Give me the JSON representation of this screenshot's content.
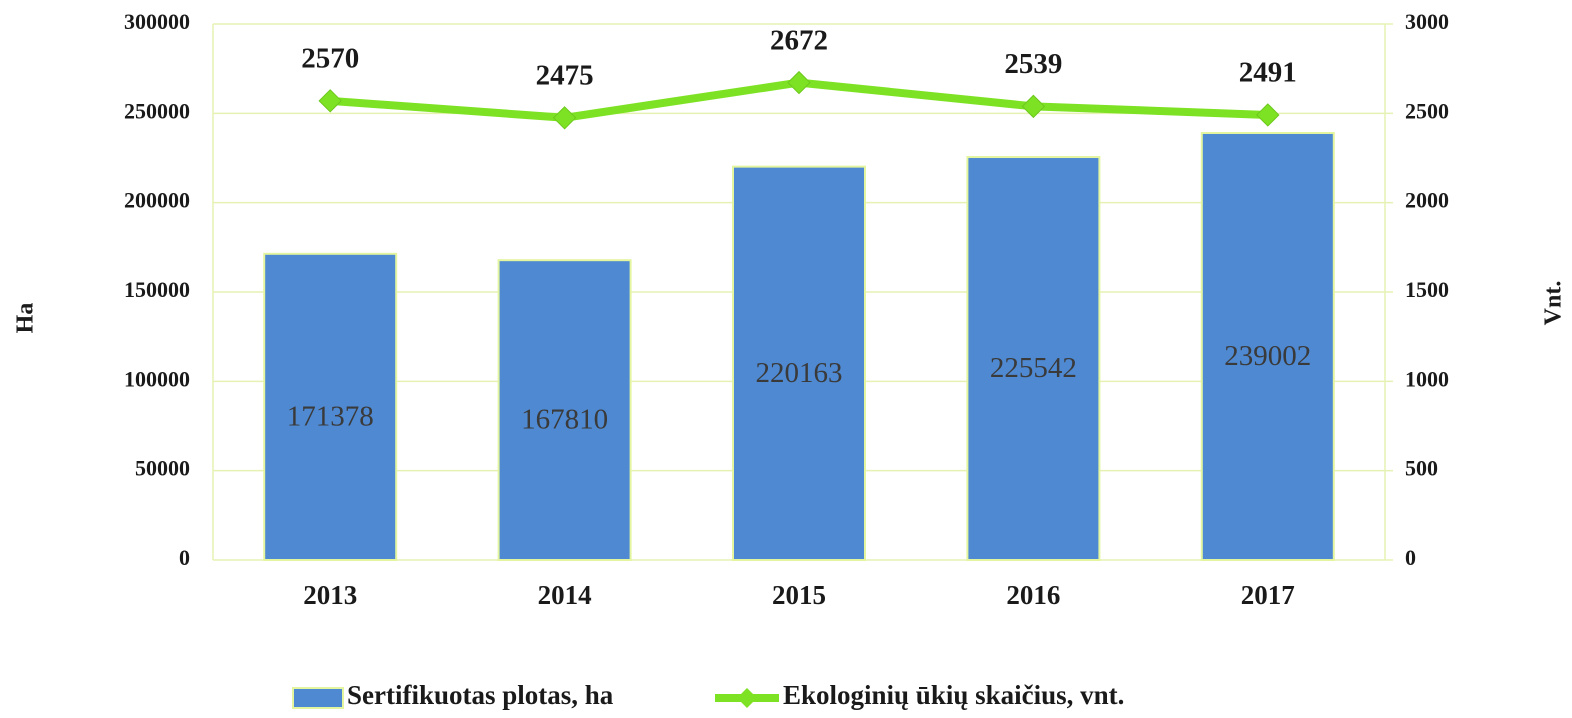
{
  "chart_data": {
    "type": "bar",
    "categories": [
      "2013",
      "2014",
      "2015",
      "2016",
      "2017"
    ],
    "series": [
      {
        "name": "Sertifikuotas plotas, ha",
        "type": "bar",
        "color": "#4f89d1",
        "values": [
          171378,
          167810,
          220163,
          225542,
          239002
        ]
      },
      {
        "name": "Ekologinių ūkių skaičius, vnt.",
        "type": "line",
        "axis": "y2",
        "color": "#7ee224",
        "values": [
          2570,
          2475,
          2672,
          2539,
          2491
        ]
      }
    ],
    "y_label": "Ha",
    "y2_label": "Vnt.",
    "ylim": [
      0,
      300000
    ],
    "yticks": [
      0,
      50000,
      100000,
      150000,
      200000,
      250000,
      300000
    ],
    "y2lim": [
      0,
      3000
    ],
    "y2ticks": [
      0,
      500,
      1000,
      1500,
      2000,
      2500,
      3000
    ],
    "grid": true,
    "legend": "bottom"
  }
}
